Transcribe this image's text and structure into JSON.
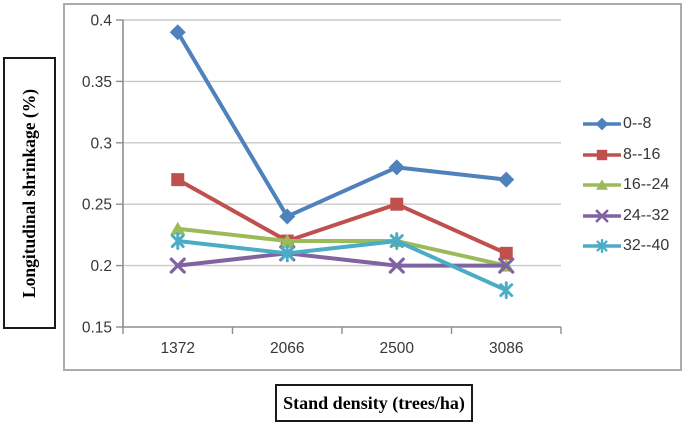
{
  "chart_data": {
    "type": "line",
    "title": "",
    "xlabel": "Stand density (trees/ha)",
    "ylabel": "Longitudinal shrinkage (%)",
    "categories": [
      "1372",
      "2066",
      "2500",
      "3086"
    ],
    "y_ticks": [
      0.15,
      0.2,
      0.25,
      0.3,
      0.35,
      0.4
    ],
    "ylim": [
      0.15,
      0.4
    ],
    "grid": true,
    "legend_position": "right",
    "series": [
      {
        "name": "0--8",
        "color": "#4F81BD",
        "marker": "diamond",
        "values": [
          0.39,
          0.24,
          0.28,
          0.27
        ]
      },
      {
        "name": "8--16",
        "color": "#C0504D",
        "marker": "square",
        "values": [
          0.27,
          0.22,
          0.25,
          0.21
        ]
      },
      {
        "name": "16--24",
        "color": "#9BBB59",
        "marker": "triangle",
        "values": [
          0.23,
          0.22,
          0.22,
          0.2
        ]
      },
      {
        "name": "24--32",
        "color": "#8064A2",
        "marker": "x",
        "values": [
          0.2,
          0.21,
          0.2,
          0.2
        ]
      },
      {
        "name": "32--40",
        "color": "#4BACC6",
        "marker": "asterisk",
        "values": [
          0.22,
          0.21,
          0.22,
          0.18
        ]
      }
    ],
    "axis_colors": {
      "gridline": "#c9c9c9",
      "axis": "#8e8e8e",
      "tick_text": "#373737",
      "frame": "#ababab"
    }
  }
}
